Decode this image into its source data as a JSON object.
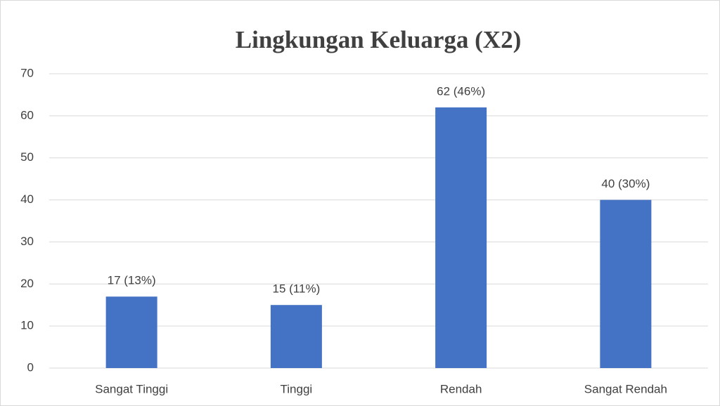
{
  "chart_data": {
    "type": "bar",
    "title": "Lingkungan Keluarga (X2)",
    "categories": [
      "Sangat Tinggi",
      "Tinggi",
      "Rendah",
      "Sangat Rendah"
    ],
    "values": [
      17,
      15,
      62,
      40
    ],
    "value_labels": [
      "17 (13%)",
      "15 (11%)",
      "62 (46%)",
      "40 (30%)"
    ],
    "color": "#4472c4",
    "ylim": [
      0,
      70
    ],
    "yticks": [
      0,
      10,
      20,
      30,
      40,
      50,
      60,
      70
    ],
    "grid": true
  }
}
